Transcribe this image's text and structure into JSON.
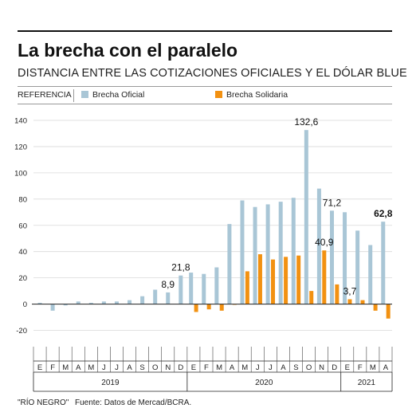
{
  "title": "La brecha con el paralelo",
  "subtitle": "DISTANCIA ENTRE LAS COTIZACIONES OFICIALES Y EL DÓLAR BLUE",
  "legend": {
    "reference_label": "REFERENCIA",
    "items": [
      {
        "label": "Brecha Oficial",
        "color": "#a9c6d6"
      },
      {
        "label": "Brecha Solidaria",
        "color": "#f29111"
      }
    ]
  },
  "footer": {
    "credit": "\"RÍO NEGRO\"",
    "source": "Fuente: Datos de Mercad/BCRA."
  },
  "chart_data": {
    "type": "bar",
    "ylim": [
      -30,
      140
    ],
    "yticks": [
      140,
      120,
      100,
      80,
      60,
      40,
      20,
      0,
      -20
    ],
    "grid": true,
    "categories": [
      "E",
      "F",
      "M",
      "A",
      "M",
      "J",
      "J",
      "A",
      "S",
      "O",
      "N",
      "D",
      "E",
      "F",
      "M",
      "A",
      "M",
      "J",
      "J",
      "A",
      "S",
      "O",
      "N",
      "D",
      "E",
      "F",
      "M",
      "A"
    ],
    "years": [
      {
        "label": "2019",
        "from": 0,
        "to": 11
      },
      {
        "label": "2020",
        "from": 12,
        "to": 23
      },
      {
        "label": "2021",
        "from": 24,
        "to": 27
      }
    ],
    "series": [
      {
        "name": "Brecha Oficial",
        "color": "#a9c6d6",
        "values": [
          1,
          -5,
          -1,
          2,
          1,
          2,
          2,
          3,
          6,
          11,
          8.9,
          21.8,
          24,
          23,
          28,
          61,
          79,
          74,
          76,
          78,
          81,
          132.6,
          88,
          71.2,
          70,
          56,
          45,
          62.8
        ]
      },
      {
        "name": "Brecha Solidaria",
        "color": "#f29111",
        "values": [
          null,
          null,
          null,
          null,
          null,
          null,
          null,
          null,
          null,
          null,
          null,
          null,
          -6,
          -4,
          -5,
          0,
          25,
          38,
          34,
          36,
          37,
          10,
          40.9,
          15,
          3.7,
          3,
          -5,
          -11
        ]
      }
    ],
    "annotations": [
      {
        "text": "8,9",
        "index": 10,
        "series": 0
      },
      {
        "text": "21,8",
        "index": 11,
        "series": 0
      },
      {
        "text": "132,6",
        "index": 21,
        "series": 0
      },
      {
        "text": "40,9",
        "index": 22,
        "series": 1
      },
      {
        "text": "71,2",
        "index": 23,
        "series": 0
      },
      {
        "text": "3,7",
        "index": 24,
        "series": 1
      },
      {
        "text": "62,8",
        "index": 27,
        "series": 0,
        "bold": true
      }
    ]
  }
}
